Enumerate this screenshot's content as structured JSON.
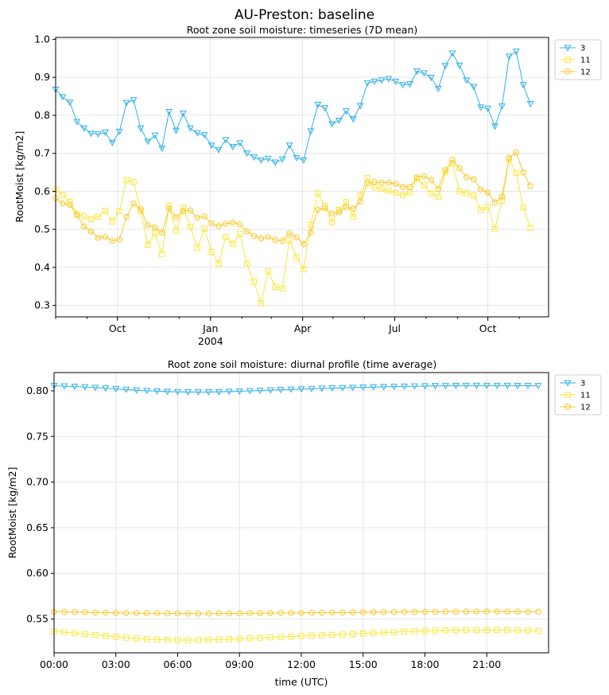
{
  "figure": {
    "suptitle": "AU-Preston: baseline"
  },
  "colors": {
    "s3": "#2fb1e8",
    "s11": "#fce634",
    "s12": "#f9c825",
    "grid": "#e6e6e6"
  },
  "chart_data": [
    {
      "type": "line",
      "title": "Root zone soil moisture: timeseries (7D mean)",
      "xlabel": "",
      "ylabel": "RootMoist [kg/m2]",
      "x_unit": "date",
      "x_start": "2003-08-01",
      "x_step_days": 7,
      "xlim": [
        "2003-08-01",
        "2004-11-30"
      ],
      "ylim": [
        0.27,
        1.005
      ],
      "x_ticks": [
        {
          "date": "2003-10-01",
          "label": "Oct",
          "sublabel": ""
        },
        {
          "date": "2004-01-01",
          "label": "Jan",
          "sublabel": "2004"
        },
        {
          "date": "2004-04-01",
          "label": "Apr",
          "sublabel": ""
        },
        {
          "date": "2004-07-01",
          "label": "Jul",
          "sublabel": ""
        },
        {
          "date": "2004-10-01",
          "label": "Oct",
          "sublabel": ""
        }
      ],
      "y_ticks": [
        0.3,
        0.4,
        0.5,
        0.6,
        0.7,
        0.8,
        0.9,
        1.0
      ],
      "y_tick_labels": [
        "0.3",
        "0.4",
        "0.5",
        "0.6",
        "0.7",
        "0.8",
        "0.9",
        "1.0"
      ],
      "grid": true,
      "legend": "outside-top-right",
      "series": [
        {
          "name": "3",
          "marker": "triangle-down",
          "color_key": "s3",
          "values": [
            0.868,
            0.848,
            0.834,
            0.783,
            0.766,
            0.752,
            0.751,
            0.755,
            0.728,
            0.757,
            0.833,
            0.84,
            0.766,
            0.731,
            0.747,
            0.713,
            0.809,
            0.76,
            0.805,
            0.766,
            0.753,
            0.748,
            0.721,
            0.709,
            0.735,
            0.717,
            0.727,
            0.7,
            0.69,
            0.682,
            0.686,
            0.676,
            0.684,
            0.721,
            0.688,
            0.682,
            0.758,
            0.828,
            0.819,
            0.777,
            0.786,
            0.811,
            0.79,
            0.825,
            0.885,
            0.889,
            0.892,
            0.896,
            0.889,
            0.88,
            0.882,
            0.916,
            0.911,
            0.899,
            0.87,
            0.93,
            0.963,
            0.931,
            0.892,
            0.875,
            0.821,
            0.818,
            0.771,
            0.824,
            0.955,
            0.968,
            0.88,
            0.83
          ]
        },
        {
          "name": "11",
          "marker": "square",
          "color_key": "s11",
          "values": [
            0.605,
            0.591,
            0.572,
            0.541,
            0.535,
            0.527,
            0.533,
            0.549,
            0.521,
            0.548,
            0.63,
            0.625,
            0.548,
            0.46,
            0.49,
            0.435,
            0.562,
            0.497,
            0.558,
            0.507,
            0.452,
            0.502,
            0.441,
            0.41,
            0.48,
            0.462,
            0.488,
            0.41,
            0.362,
            0.306,
            0.39,
            0.349,
            0.344,
            0.472,
            0.427,
            0.395,
            0.512,
            0.595,
            0.562,
            0.519,
            0.551,
            0.572,
            0.533,
            0.59,
            0.635,
            0.611,
            0.606,
            0.602,
            0.596,
            0.59,
            0.597,
            0.633,
            0.616,
            0.595,
            0.586,
            0.65,
            0.673,
            0.6,
            0.595,
            0.59,
            0.552,
            0.559,
            0.501,
            0.575,
            0.686,
            0.648,
            0.558,
            0.504
          ]
        },
        {
          "name": "12",
          "marker": "hexagon",
          "color_key": "s12",
          "values": [
            0.582,
            0.568,
            0.565,
            0.538,
            0.508,
            0.495,
            0.478,
            0.48,
            0.47,
            0.473,
            0.533,
            0.568,
            0.553,
            0.511,
            0.505,
            0.491,
            0.555,
            0.532,
            0.548,
            0.55,
            0.531,
            0.534,
            0.516,
            0.509,
            0.515,
            0.518,
            0.513,
            0.495,
            0.483,
            0.476,
            0.48,
            0.472,
            0.47,
            0.49,
            0.479,
            0.461,
            0.492,
            0.552,
            0.556,
            0.542,
            0.546,
            0.558,
            0.555,
            0.573,
            0.621,
            0.625,
            0.623,
            0.623,
            0.62,
            0.612,
            0.612,
            0.637,
            0.64,
            0.63,
            0.606,
            0.656,
            0.683,
            0.661,
            0.637,
            0.632,
            0.605,
            0.597,
            0.571,
            0.586,
            0.688,
            0.702,
            0.65,
            0.614
          ]
        }
      ]
    },
    {
      "type": "line",
      "title": "Root zone soil moisture: diurnal profile (time average)",
      "xlabel": "time (UTC)",
      "ylabel": "RootMoist [kg/m2]",
      "x_unit": "hours",
      "x_start": 0,
      "x_step_hours": 0.5,
      "xlim": [
        0,
        24
      ],
      "ylim": [
        0.513,
        0.82
      ],
      "x_ticks": [
        {
          "value": 0,
          "label": "00:00"
        },
        {
          "value": 3,
          "label": "03:00"
        },
        {
          "value": 6,
          "label": "06:00"
        },
        {
          "value": 9,
          "label": "09:00"
        },
        {
          "value": 12,
          "label": "12:00"
        },
        {
          "value": 15,
          "label": "15:00"
        },
        {
          "value": 18,
          "label": "18:00"
        },
        {
          "value": 21,
          "label": "21:00"
        }
      ],
      "y_ticks": [
        0.55,
        0.6,
        0.65,
        0.7,
        0.75,
        0.8
      ],
      "y_tick_labels": [
        "0.55",
        "0.60",
        "0.65",
        "0.70",
        "0.75",
        "0.80"
      ],
      "grid": true,
      "legend": "outside-top-right",
      "series": [
        {
          "name": "3",
          "marker": "triangle-down",
          "color_key": "s3",
          "values": [
            0.8055,
            0.8051,
            0.8046,
            0.8041,
            0.8035,
            0.8028,
            0.8021,
            0.8014,
            0.8007,
            0.8001,
            0.7996,
            0.7991,
            0.7988,
            0.7986,
            0.7985,
            0.7986,
            0.7988,
            0.7991,
            0.7995,
            0.7999,
            0.8003,
            0.8007,
            0.8011,
            0.8015,
            0.8019,
            0.8022,
            0.8026,
            0.8029,
            0.8032,
            0.8035,
            0.8038,
            0.8041,
            0.8044,
            0.8046,
            0.8048,
            0.805,
            0.8052,
            0.8054,
            0.8055,
            0.8056,
            0.8057,
            0.8057,
            0.8057,
            0.8057,
            0.8057,
            0.8056,
            0.8056,
            0.8055
          ]
        },
        {
          "name": "11",
          "marker": "square",
          "color_key": "s11",
          "values": [
            0.5365,
            0.5356,
            0.5346,
            0.5336,
            0.5325,
            0.5315,
            0.5305,
            0.5296,
            0.5288,
            0.5281,
            0.5276,
            0.5272,
            0.527,
            0.5269,
            0.527,
            0.5272,
            0.5275,
            0.5279,
            0.5284,
            0.5289,
            0.5294,
            0.5299,
            0.5304,
            0.5309,
            0.5314,
            0.5318,
            0.5322,
            0.5327,
            0.5331,
            0.5336,
            0.5341,
            0.5346,
            0.5351,
            0.5356,
            0.5361,
            0.5366,
            0.537,
            0.5373,
            0.5376,
            0.5378,
            0.5379,
            0.5379,
            0.5379,
            0.5378,
            0.5377,
            0.5375,
            0.5373,
            0.537
          ]
        },
        {
          "name": "12",
          "marker": "hexagon",
          "color_key": "s12",
          "values": [
            0.558,
            0.5578,
            0.5576,
            0.5574,
            0.5572,
            0.557,
            0.5568,
            0.5566,
            0.5565,
            0.5563,
            0.5562,
            0.5561,
            0.5561,
            0.556,
            0.556,
            0.556,
            0.5561,
            0.5561,
            0.5562,
            0.5563,
            0.5564,
            0.5565,
            0.5566,
            0.5567,
            0.5568,
            0.5569,
            0.557,
            0.5571,
            0.5572,
            0.5573,
            0.5574,
            0.5575,
            0.5576,
            0.5577,
            0.5578,
            0.5579,
            0.558,
            0.558,
            0.5581,
            0.5581,
            0.5582,
            0.5582,
            0.5582,
            0.5582,
            0.5581,
            0.5581,
            0.558,
            0.558
          ]
        }
      ]
    }
  ]
}
